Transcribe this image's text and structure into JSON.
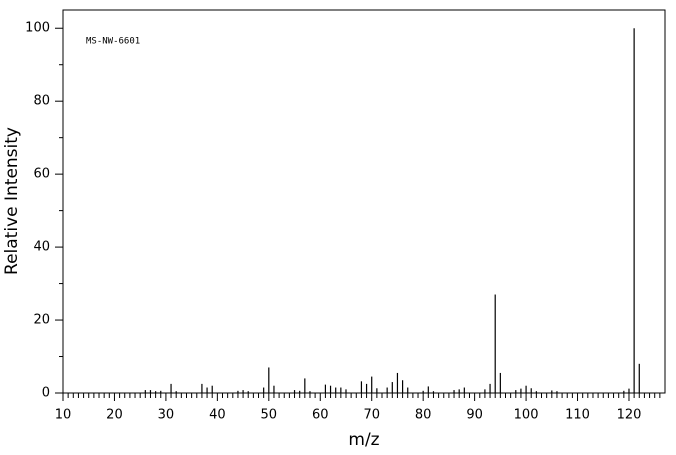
{
  "chart_data": {
    "type": "stem",
    "annotation": "MS-NW-6601",
    "x_label": "m/z",
    "y_label": "Relative Intensity",
    "color": "#000000",
    "x": [
      26,
      27,
      28,
      29,
      31,
      32,
      37,
      38,
      39,
      44,
      45,
      46,
      49,
      50,
      51,
      55,
      56,
      57,
      58,
      61,
      62,
      63,
      64,
      65,
      68,
      69,
      70,
      71,
      73,
      74,
      75,
      76,
      77,
      80,
      81,
      82,
      86,
      87,
      88,
      92,
      93,
      94,
      95,
      98,
      99,
      100,
      101,
      102,
      105,
      106,
      119,
      120,
      121,
      122
    ],
    "values": [
      0.8,
      0.8,
      0.5,
      0.6,
      2.5,
      0.5,
      2.5,
      1.5,
      2,
      0.6,
      0.8,
      0.5,
      1.5,
      7,
      2,
      0.8,
      0.6,
      4,
      0.5,
      2.3,
      2,
      1.5,
      1.5,
      1,
      3.2,
      2.5,
      4.5,
      1.3,
      1.5,
      3,
      5.5,
      3.5,
      1.5,
      0.6,
      1.8,
      0.5,
      0.8,
      1,
      1.5,
      1,
      2.5,
      27,
      5.5,
      0.8,
      1.2,
      2,
      1.3,
      0.5,
      0.7,
      0.5,
      0.6,
      1.2,
      100,
      8
    ],
    "xlim": [
      10,
      127
    ],
    "ylim": [
      0,
      105
    ],
    "xticks": [
      10,
      20,
      30,
      40,
      50,
      60,
      70,
      80,
      90,
      100,
      110,
      120
    ],
    "xminorticks": [
      11,
      12,
      13,
      14,
      15,
      16,
      17,
      18,
      19,
      21,
      22,
      23,
      24,
      25,
      26,
      27,
      28,
      29,
      31,
      32,
      33,
      34,
      35,
      36,
      37,
      38,
      39,
      41,
      42,
      43,
      44,
      45,
      46,
      47,
      48,
      49,
      51,
      52,
      53,
      54,
      55,
      56,
      57,
      58,
      59,
      61,
      62,
      63,
      64,
      65,
      66,
      67,
      68,
      69,
      71,
      72,
      73,
      74,
      75,
      76,
      77,
      78,
      79,
      81,
      82,
      83,
      84,
      85,
      86,
      87,
      88,
      89,
      91,
      92,
      93,
      94,
      95,
      96,
      97,
      98,
      99,
      101,
      102,
      103,
      104,
      105,
      106,
      107,
      108,
      109,
      111,
      112,
      113,
      114,
      115,
      116,
      117,
      118,
      119,
      121,
      122,
      123,
      124,
      125,
      126
    ],
    "yticks": [
      0,
      20,
      40,
      60,
      80,
      100
    ],
    "yminorticks": [
      10,
      30,
      50,
      70,
      90
    ]
  }
}
